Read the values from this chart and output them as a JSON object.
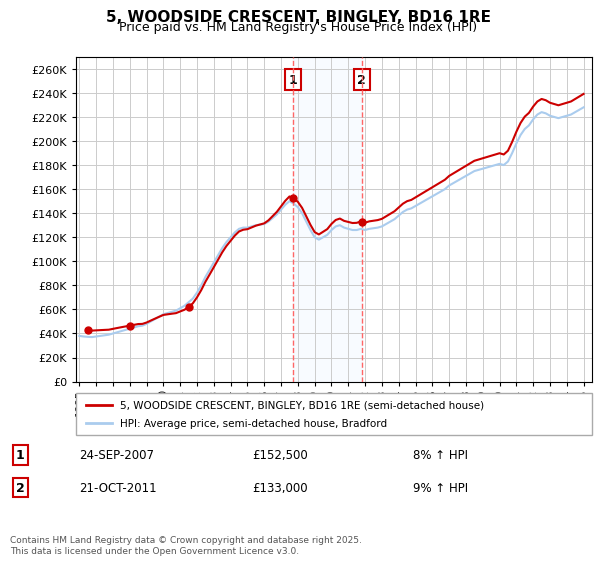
{
  "title": "5, WOODSIDE CRESCENT, BINGLEY, BD16 1RE",
  "subtitle": "Price paid vs. HM Land Registry's House Price Index (HPI)",
  "ylabel": "",
  "ylim": [
    0,
    270000
  ],
  "yticks": [
    0,
    20000,
    40000,
    60000,
    80000,
    100000,
    120000,
    140000,
    160000,
    180000,
    200000,
    220000,
    240000,
    260000
  ],
  "ytick_labels": [
    "£0",
    "£20K",
    "£40K",
    "£60K",
    "£80K",
    "£100K",
    "£120K",
    "£140K",
    "£160K",
    "£180K",
    "£200K",
    "£220K",
    "£240K",
    "£260K"
  ],
  "background_color": "#ffffff",
  "plot_bg_color": "#ffffff",
  "grid_color": "#cccccc",
  "line1_color": "#cc0000",
  "line2_color": "#aaccee",
  "marker1_color": "#cc0000",
  "sale1_date": 2007.73,
  "sale1_price": 152500,
  "sale2_date": 2011.8,
  "sale2_price": 133000,
  "vline_color": "#ff6666",
  "vshade_color": "#ddeeff",
  "legend_label1": "5, WOODSIDE CRESCENT, BINGLEY, BD16 1RE (semi-detached house)",
  "legend_label2": "HPI: Average price, semi-detached house, Bradford",
  "annotation1_label": "1",
  "annotation1_date": "24-SEP-2007",
  "annotation1_price": "£152,500",
  "annotation1_hpi": "8% ↑ HPI",
  "annotation2_label": "2",
  "annotation2_date": "21-OCT-2011",
  "annotation2_price": "£133,000",
  "annotation2_hpi": "9% ↑ HPI",
  "footer": "Contains HM Land Registry data © Crown copyright and database right 2025.\nThis data is licensed under the Open Government Licence v3.0.",
  "hpi_data": {
    "dates": [
      1995.0,
      1995.25,
      1995.5,
      1995.75,
      1996.0,
      1996.25,
      1996.5,
      1996.75,
      1997.0,
      1997.25,
      1997.5,
      1997.75,
      1998.0,
      1998.25,
      1998.5,
      1998.75,
      1999.0,
      1999.25,
      1999.5,
      1999.75,
      2000.0,
      2000.25,
      2000.5,
      2000.75,
      2001.0,
      2001.25,
      2001.5,
      2001.75,
      2002.0,
      2002.25,
      2002.5,
      2002.75,
      2003.0,
      2003.25,
      2003.5,
      2003.75,
      2004.0,
      2004.25,
      2004.5,
      2004.75,
      2005.0,
      2005.25,
      2005.5,
      2005.75,
      2006.0,
      2006.25,
      2006.5,
      2006.75,
      2007.0,
      2007.25,
      2007.5,
      2007.75,
      2008.0,
      2008.25,
      2008.5,
      2008.75,
      2009.0,
      2009.25,
      2009.5,
      2009.75,
      2010.0,
      2010.25,
      2010.5,
      2010.75,
      2011.0,
      2011.25,
      2011.5,
      2011.75,
      2012.0,
      2012.25,
      2012.5,
      2012.75,
      2013.0,
      2013.25,
      2013.5,
      2013.75,
      2014.0,
      2014.25,
      2014.5,
      2014.75,
      2015.0,
      2015.25,
      2015.5,
      2015.75,
      2016.0,
      2016.25,
      2016.5,
      2016.75,
      2017.0,
      2017.25,
      2017.5,
      2017.75,
      2018.0,
      2018.25,
      2018.5,
      2018.75,
      2019.0,
      2019.25,
      2019.5,
      2019.75,
      2020.0,
      2020.25,
      2020.5,
      2020.75,
      2021.0,
      2021.25,
      2021.5,
      2021.75,
      2022.0,
      2022.25,
      2022.5,
      2022.75,
      2023.0,
      2023.25,
      2023.5,
      2023.75,
      2024.0,
      2024.25,
      2024.5,
      2024.75,
      2025.0
    ],
    "hpi_values": [
      38000,
      37500,
      37200,
      37000,
      37500,
      38000,
      38500,
      39000,
      40000,
      41000,
      42000,
      43000,
      44000,
      45000,
      46000,
      46500,
      48000,
      50000,
      52000,
      54000,
      56000,
      57000,
      58000,
      59000,
      61000,
      63000,
      66000,
      69000,
      74000,
      80000,
      87000,
      93000,
      99000,
      105000,
      111000,
      116000,
      120000,
      124000,
      127000,
      128000,
      128000,
      129000,
      130000,
      130500,
      131000,
      133000,
      136000,
      139000,
      143000,
      147000,
      150000,
      148000,
      145000,
      140000,
      133000,
      126000,
      120000,
      118000,
      120000,
      122000,
      126000,
      129000,
      130000,
      128000,
      127000,
      126000,
      126000,
      127000,
      126000,
      127000,
      127500,
      128000,
      129000,
      131000,
      133000,
      135000,
      138000,
      141000,
      143000,
      144000,
      146000,
      148000,
      150000,
      152000,
      154000,
      156000,
      158000,
      160000,
      163000,
      165000,
      167000,
      169000,
      171000,
      173000,
      175000,
      176000,
      177000,
      178000,
      179000,
      180000,
      181000,
      180000,
      183000,
      190000,
      198000,
      205000,
      210000,
      213000,
      218000,
      222000,
      224000,
      223000,
      221000,
      220000,
      219000,
      220000,
      221000,
      222000,
      224000,
      226000,
      228000
    ],
    "paid_dates": [
      1995.5,
      1998.0,
      2001.5,
      2007.73,
      2011.8
    ],
    "paid_values": [
      43000,
      46500,
      62000,
      152500,
      133000
    ]
  }
}
